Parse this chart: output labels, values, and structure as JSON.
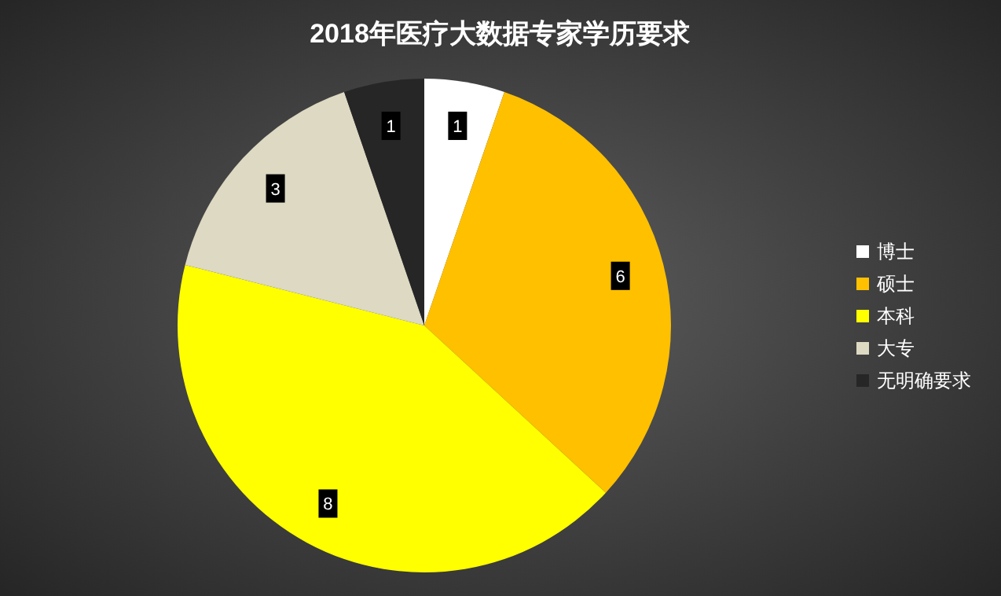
{
  "chart_data": {
    "type": "pie",
    "title": "2018年医疗大数据专家学历要求",
    "categories": [
      "博士",
      "硕士",
      "本科",
      "大专",
      "无明确要求"
    ],
    "values": [
      1,
      6,
      8,
      3,
      1
    ],
    "colors": [
      "#ffffff",
      "#ffc000",
      "#ffff00",
      "#ddd9c3",
      "#262626"
    ],
    "data_labels": true,
    "legend": "right"
  }
}
